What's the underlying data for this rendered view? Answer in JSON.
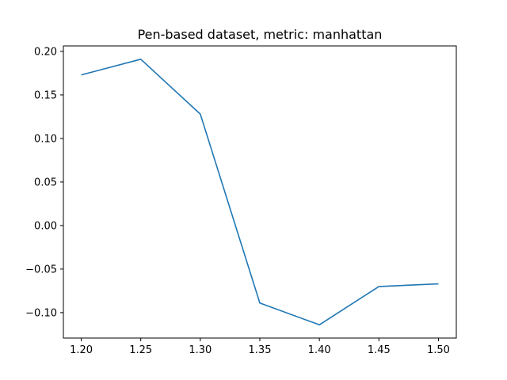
{
  "chart_data": {
    "type": "line",
    "title": "Pen-based dataset, metric: manhattan",
    "xlabel": "",
    "ylabel": "",
    "x": [
      1.2,
      1.25,
      1.3,
      1.35,
      1.4,
      1.45,
      1.5
    ],
    "series": [
      {
        "values": [
          0.173,
          0.191,
          0.128,
          -0.089,
          -0.114,
          -0.07,
          -0.067
        ],
        "color": "#1f77b4"
      }
    ],
    "xlim": [
      1.185,
      1.515
    ],
    "ylim": [
      -0.1292,
      0.2063
    ],
    "xticks": [
      "1.20",
      "1.25",
      "1.30",
      "1.35",
      "1.40",
      "1.45",
      "1.50"
    ],
    "yticks": [
      "0.20",
      "0.15",
      "0.10",
      "0.05",
      "0.00",
      "−0.05",
      "−0.10"
    ],
    "grid": false,
    "legend": "none"
  }
}
